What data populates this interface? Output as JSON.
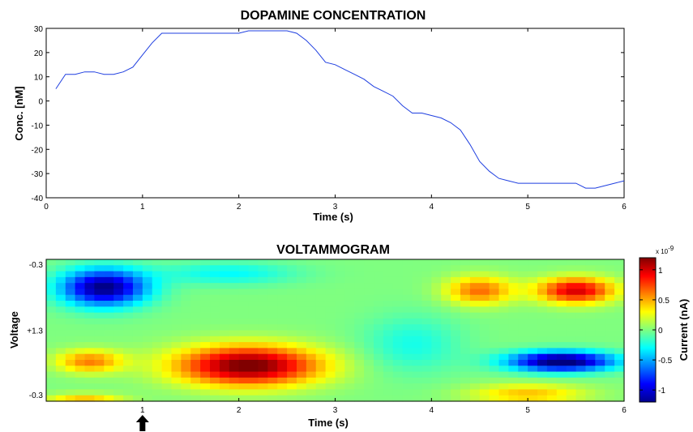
{
  "chart_data": [
    {
      "type": "line",
      "title": "DOPAMINE CONCENTRATION",
      "xlabel": "Time (s)",
      "ylabel": "Conc. [nM]",
      "xlim": [
        0,
        6
      ],
      "ylim": [
        -40,
        30
      ],
      "xticks": [
        "0",
        "1",
        "2",
        "3",
        "4",
        "5",
        "6"
      ],
      "yticks": [
        "30",
        "20",
        "10",
        "0",
        "-10",
        "-20",
        "-30",
        "-40"
      ],
      "grid": false,
      "line_color": "#1f3fe0",
      "series": [
        {
          "x": [
            0.1,
            0.2,
            0.3,
            0.4,
            0.5,
            0.6,
            0.7,
            0.8,
            0.9,
            1.0,
            1.1,
            1.2,
            1.3,
            1.4,
            1.5,
            1.6,
            1.7,
            1.8,
            1.9,
            2.0,
            2.1,
            2.2,
            2.3,
            2.4,
            2.5,
            2.6,
            2.7,
            2.8,
            2.9,
            3.0,
            3.1,
            3.2,
            3.3,
            3.4,
            3.5,
            3.6,
            3.7,
            3.8,
            3.9,
            4.0,
            4.1,
            4.2,
            4.3,
            4.4,
            4.5,
            4.6,
            4.7,
            4.8,
            4.9,
            5.0,
            5.1,
            5.2,
            5.3,
            5.4,
            5.5,
            5.6,
            5.7,
            5.8,
            5.9,
            6.0
          ],
          "y": [
            5,
            11,
            11,
            12,
            12,
            11,
            11,
            12,
            14,
            19,
            24,
            28,
            28,
            28,
            28,
            28,
            28,
            28,
            28,
            28,
            29,
            29,
            29,
            29,
            29,
            28,
            25,
            21,
            16,
            15,
            13,
            11,
            9,
            6,
            4,
            2,
            -2,
            -5,
            -5,
            -6,
            -7,
            -9,
            -12,
            -18,
            -25,
            -29,
            -32,
            -33,
            -34,
            -34,
            -34,
            -34,
            -34,
            -34,
            -34,
            -36,
            -36,
            -35,
            -34,
            -33
          ]
        }
      ]
    },
    {
      "type": "heatmap",
      "title": "VOLTAMMOGRAM",
      "xlabel": "Time (s)",
      "ylabel": "Voltage",
      "xlim": [
        0,
        6
      ],
      "xticks": [
        "1",
        "2",
        "3",
        "4",
        "5",
        "6"
      ],
      "yticks": [
        "-0.3",
        "+1.3",
        "-0.3"
      ],
      "colorbar": {
        "label": "Current (nA)",
        "multiplier": "x 10",
        "exponent": "-9",
        "range": [
          -1.2,
          1.2
        ],
        "ticks": [
          "1",
          "0.5",
          "0",
          "-0.5",
          "-1"
        ]
      },
      "blobs": [
        {
          "t": 0.6,
          "v": 0.2,
          "amp": -1.2,
          "st": 0.45,
          "sv": 0.13
        },
        {
          "t": 2.1,
          "v": 0.75,
          "amp": 1.25,
          "st": 0.75,
          "sv": 0.14
        },
        {
          "t": 0.45,
          "v": 0.72,
          "amp": 0.6,
          "st": 0.35,
          "sv": 0.08
        },
        {
          "t": 4.5,
          "v": 0.22,
          "amp": 0.65,
          "st": 0.35,
          "sv": 0.1
        },
        {
          "t": 5.5,
          "v": 0.22,
          "amp": 1.0,
          "st": 0.4,
          "sv": 0.09
        },
        {
          "t": 5.35,
          "v": 0.72,
          "amp": -1.3,
          "st": 0.55,
          "sv": 0.07
        },
        {
          "t": 1.9,
          "v": 0.1,
          "amp": -0.3,
          "st": 0.7,
          "sv": 0.08
        },
        {
          "t": 3.8,
          "v": 0.6,
          "amp": -0.25,
          "st": 0.5,
          "sv": 0.2
        },
        {
          "t": 5.0,
          "v": 0.95,
          "amp": 0.45,
          "st": 0.6,
          "sv": 0.07
        },
        {
          "t": 0.4,
          "v": 1.0,
          "amp": 0.5,
          "st": 0.4,
          "sv": 0.05
        }
      ],
      "marker": {
        "at_time": 1,
        "label": "stimulus arrow"
      }
    }
  ]
}
